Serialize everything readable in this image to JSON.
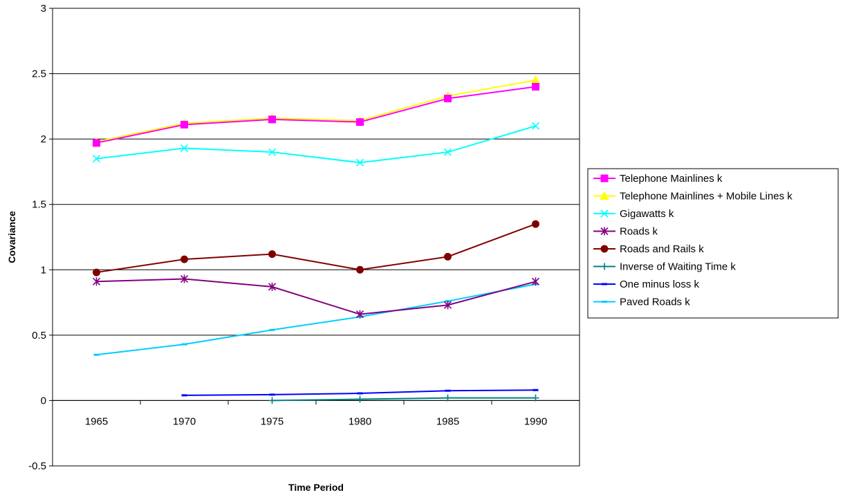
{
  "chart_data": {
    "type": "line",
    "title": "",
    "xlabel": "Time Period",
    "ylabel": "Covariance",
    "categories": [
      "1965",
      "1970",
      "1975",
      "1980",
      "1985",
      "1990"
    ],
    "ylim": [
      -0.5,
      3
    ],
    "yticks": [
      "-0.5",
      "0",
      "0.5",
      "1",
      "1.5",
      "2",
      "2.5",
      "3"
    ],
    "grid": true,
    "legend_position": "right",
    "series": [
      {
        "name": "Telephone Mainlines k",
        "color": "#ff00ff",
        "marker": "square",
        "values": [
          1.97,
          2.11,
          2.15,
          2.13,
          2.31,
          2.4
        ]
      },
      {
        "name": "Telephone Mainlines + Mobile Lines k",
        "color": "#ffff00",
        "marker": "triangle",
        "values": [
          1.98,
          2.12,
          2.16,
          2.14,
          2.33,
          2.45
        ]
      },
      {
        "name": "Gigawatts k",
        "color": "#00ffff",
        "marker": "x",
        "values": [
          1.85,
          1.93,
          1.9,
          1.82,
          1.9,
          2.1
        ]
      },
      {
        "name": "Roads k",
        "color": "#800080",
        "marker": "asterisk",
        "values": [
          0.91,
          0.93,
          0.87,
          0.66,
          0.73,
          0.91
        ]
      },
      {
        "name": "Roads and Rails k",
        "color": "#800000",
        "marker": "circle",
        "values": [
          0.98,
          1.08,
          1.12,
          1.0,
          1.1,
          1.35
        ]
      },
      {
        "name": "Inverse of Waiting Time k",
        "color": "#008080",
        "marker": "plus",
        "values": [
          null,
          null,
          0.0,
          0.01,
          0.02,
          0.02
        ]
      },
      {
        "name": "One minus loss k",
        "color": "#0000ff",
        "marker": "dash",
        "values": [
          null,
          0.04,
          0.045,
          0.055,
          0.075,
          0.08
        ]
      },
      {
        "name": "Paved Roads k",
        "color": "#00ccff",
        "marker": "dash",
        "values": [
          0.35,
          0.43,
          0.54,
          0.64,
          0.76,
          0.89
        ]
      }
    ]
  }
}
